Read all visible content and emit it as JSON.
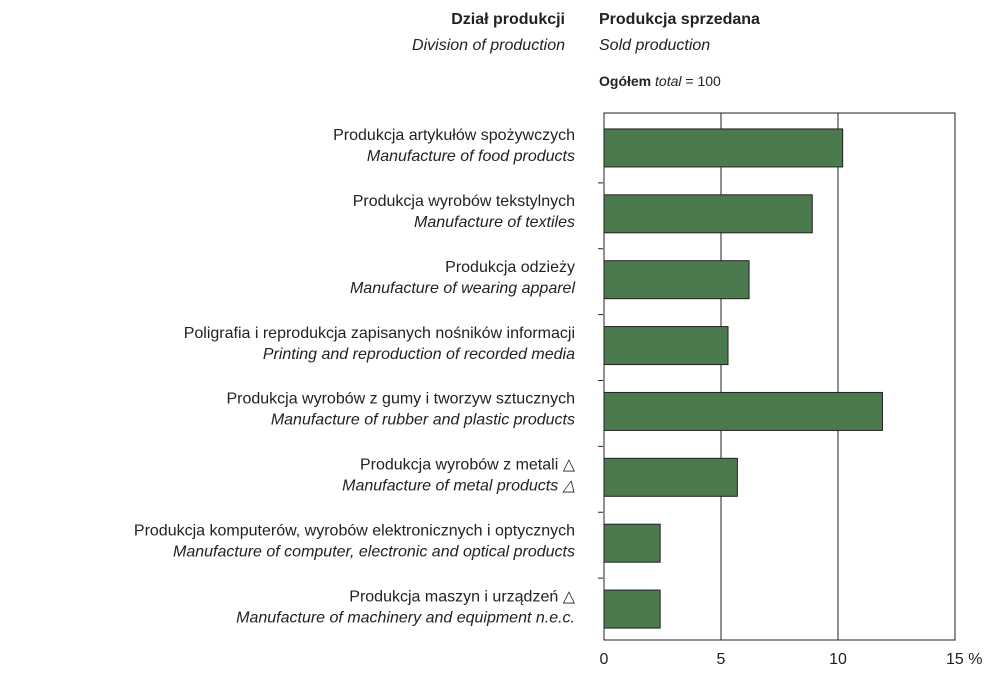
{
  "chart_data": {
    "type": "bar",
    "header_left": "Dział produkcji",
    "header_left_en": "Division of production",
    "title": "Produkcja sprzedana",
    "subtitle": "Sold production",
    "total_label": "Ogółem",
    "total_label_en": "total",
    "total_text": "= 100",
    "categories": [
      "Produkcja artykułów spożywczych",
      "Produkcja wyrobów tekstylnych",
      "Produkcja odzieży",
      "Poligrafia i reprodukcja zapisanych nośników informacji",
      "Produkcja wyrobów z gumy i tworzyw sztucznych",
      "Produkcja wyrobów z metali △",
      "Produkcja komputerów, wyrobów elektronicznych i optycznych",
      "Produkcja maszyn i urządzeń △"
    ],
    "categories_en": [
      "Manufacture of food products",
      "Manufacture of textiles",
      "Manufacture of wearing apparel",
      "Printing and reproduction of recorded media",
      "Manufacture of rubber and plastic products",
      "Manufacture of metal products △",
      "Manufacture  of computer, electronic and optical products",
      "Manufacture of machinery and equipment n.e.c."
    ],
    "values": [
      10.2,
      8.9,
      6.2,
      5.3,
      11.9,
      5.7,
      2.4,
      2.4
    ],
    "color": "#4a7a4e",
    "xlim": [
      0,
      15
    ],
    "xticks": [
      0,
      5,
      10,
      {
        "value": 15,
        "label": "15 %"
      }
    ],
    "grid": true
  }
}
